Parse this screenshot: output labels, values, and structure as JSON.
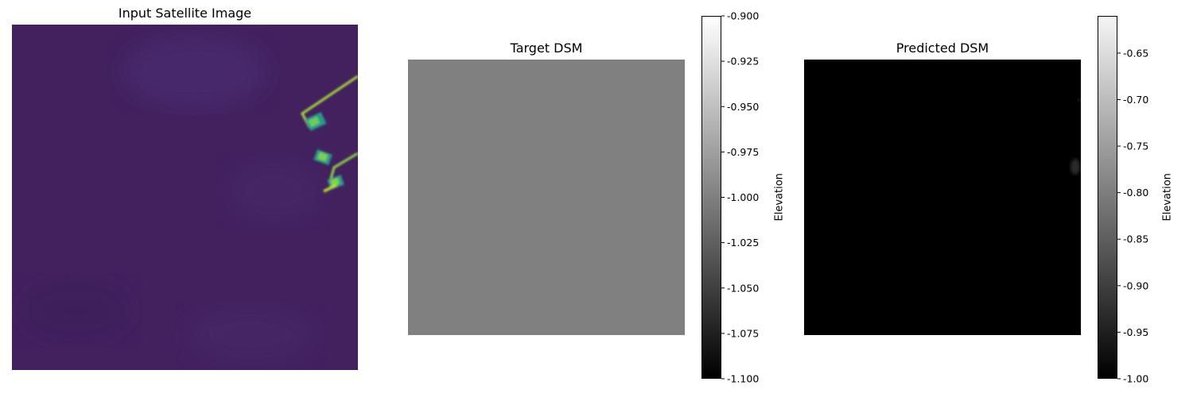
{
  "chart_data": [
    {
      "type": "heatmap",
      "title": "Input Satellite Image",
      "colormap": "viridis",
      "features": [
        "bright linear structures and rectangular buildings near the right edge"
      ]
    },
    {
      "type": "heatmap",
      "title": "Target DSM",
      "colormap": "gray",
      "value": -1.0,
      "colorbar": {
        "label": "Elevation",
        "range": [
          -1.1,
          -0.9
        ],
        "ticks": [
          "-0.900",
          "-0.925",
          "-0.950",
          "-0.975",
          "-1.000",
          "-1.025",
          "-1.050",
          "-1.075",
          "-1.100"
        ],
        "tick_values": [
          -0.9,
          -0.925,
          -0.95,
          -0.975,
          -1.0,
          -1.025,
          -1.05,
          -1.075,
          -1.1
        ]
      }
    },
    {
      "type": "heatmap",
      "title": "Predicted DSM",
      "colormap": "gray",
      "value": -1.0,
      "colorbar": {
        "label": "Elevation",
        "range": [
          -1.0,
          -0.61
        ],
        "ticks": [
          "-0.65",
          "-0.70",
          "-0.75",
          "-0.80",
          "-0.85",
          "-0.90",
          "-0.95",
          "-1.00"
        ],
        "tick_values": [
          -0.65,
          -0.7,
          -0.75,
          -0.8,
          -0.85,
          -0.9,
          -0.95,
          -1.0
        ]
      }
    }
  ]
}
